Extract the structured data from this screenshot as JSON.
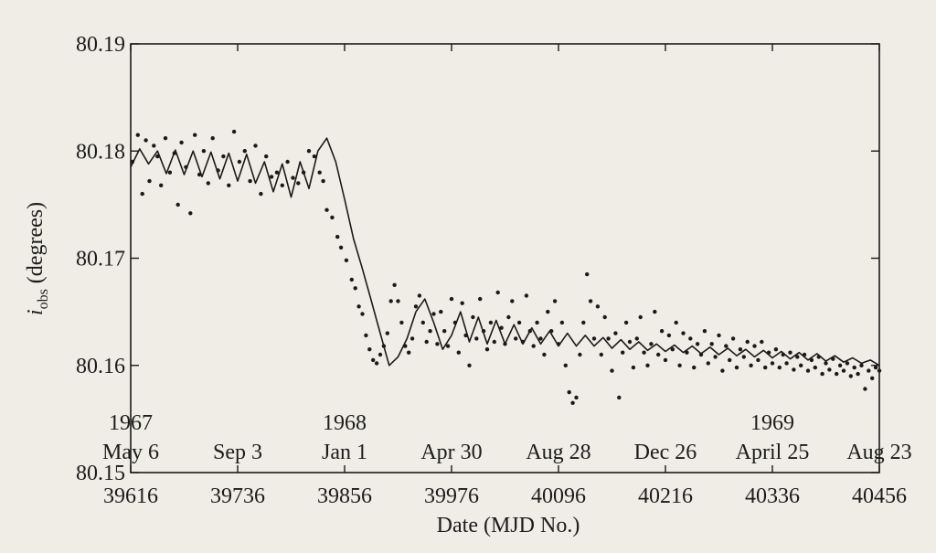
{
  "chart_data": {
    "type": "line",
    "xlabel": "Date (MJD No.)",
    "ylabel_main": "i",
    "ylabel_sub": "obs",
    "ylabel_rest": " (degrees)",
    "ylim": [
      80.15,
      80.19
    ],
    "xlim": [
      39616,
      40456
    ],
    "y_ticks": [
      {
        "value": 80.19,
        "label": "80.19"
      },
      {
        "value": 80.18,
        "label": "80.18"
      },
      {
        "value": 80.17,
        "label": "80.17"
      },
      {
        "value": 80.16,
        "label": "80.16"
      },
      {
        "value": 80.15,
        "label": "80.15"
      }
    ],
    "x_ticks_mjd": [
      {
        "value": 39616,
        "label": "39616"
      },
      {
        "value": 39736,
        "label": "39736"
      },
      {
        "value": 39856,
        "label": "39856"
      },
      {
        "value": 39976,
        "label": "39976"
      },
      {
        "value": 40096,
        "label": "40096"
      },
      {
        "value": 40216,
        "label": "40216"
      },
      {
        "value": 40336,
        "label": "40336"
      },
      {
        "value": 40456,
        "label": "40456"
      }
    ],
    "x_ticks_dates": [
      {
        "value": 39616,
        "label": "May 6"
      },
      {
        "value": 39736,
        "label": "Sep 3"
      },
      {
        "value": 39856,
        "label": "Jan 1"
      },
      {
        "value": 39976,
        "label": "Apr 30"
      },
      {
        "value": 40096,
        "label": "Aug 28"
      },
      {
        "value": 40216,
        "label": "Dec 26"
      },
      {
        "value": 40336,
        "label": "April 25"
      },
      {
        "value": 40456,
        "label": "Aug 23"
      }
    ],
    "year_labels": [
      {
        "value": 39616,
        "label": "1967"
      },
      {
        "value": 39856,
        "label": "1968"
      },
      {
        "value": 40336,
        "label": "1969"
      }
    ],
    "fit_curve": {
      "x": [
        39616,
        39626,
        39636,
        39646,
        39656,
        39666,
        39676,
        39686,
        39696,
        39706,
        39716,
        39726,
        39736,
        39746,
        39756,
        39766,
        39776,
        39786,
        39796,
        39806,
        39816,
        39826,
        39836,
        39846,
        39856,
        39866,
        39876,
        39886,
        39896,
        39906,
        39916,
        39926,
        39936,
        39946,
        39956,
        39966,
        39976,
        39986,
        39996,
        40006,
        40016,
        40026,
        40036,
        40046,
        40056,
        40066,
        40076,
        40086,
        40096,
        40106,
        40116,
        40126,
        40136,
        40146,
        40156,
        40166,
        40176,
        40186,
        40196,
        40206,
        40216,
        40226,
        40236,
        40246,
        40256,
        40266,
        40276,
        40286,
        40296,
        40306,
        40316,
        40326,
        40336,
        40346,
        40356,
        40366,
        40376,
        40386,
        40396,
        40406,
        40416,
        40426,
        40436,
        40446,
        40456
      ],
      "y": [
        80.1785,
        80.1802,
        80.1788,
        80.18,
        80.1779,
        80.1801,
        80.1778,
        80.18,
        80.1776,
        80.1799,
        80.1774,
        80.1798,
        80.1772,
        80.1797,
        80.177,
        80.179,
        80.1762,
        80.1788,
        80.1757,
        80.179,
        80.1765,
        80.18,
        80.1812,
        80.179,
        80.1755,
        80.1718,
        80.169,
        80.166,
        80.163,
        80.16,
        80.1608,
        80.1625,
        80.165,
        80.1662,
        80.164,
        80.1615,
        80.1628,
        80.165,
        80.1622,
        80.1645,
        80.162,
        80.1642,
        80.162,
        80.1638,
        80.162,
        80.1635,
        80.162,
        80.1632,
        80.1618,
        80.163,
        80.1618,
        80.1628,
        80.1618,
        80.1626,
        80.1616,
        80.1624,
        80.1615,
        80.1622,
        80.1614,
        80.162,
        80.1613,
        80.1619,
        80.1612,
        80.1618,
        80.1611,
        80.1617,
        80.161,
        80.1616,
        80.1609,
        80.1615,
        80.1608,
        80.1614,
        80.1607,
        80.1613,
        80.1606,
        80.1612,
        80.1605,
        80.1611,
        80.1604,
        80.1609,
        80.1603,
        80.1607,
        80.1602,
        80.1605,
        80.16
      ]
    },
    "observations": {
      "x": [
        39618,
        39624,
        39629,
        39633,
        39637,
        39642,
        39646,
        39650,
        39655,
        39660,
        39665,
        39669,
        39673,
        39678,
        39683,
        39688,
        39693,
        39698,
        39703,
        39708,
        39714,
        39720,
        39726,
        39732,
        39738,
        39744,
        39750,
        39756,
        39762,
        39768,
        39774,
        39780,
        39786,
        39792,
        39798,
        39804,
        39810,
        39816,
        39822,
        39828,
        39832,
        39836,
        39842,
        39848,
        39852,
        39858,
        39864,
        39868,
        39872,
        39876,
        39880,
        39884,
        39888,
        39892,
        39896,
        39900,
        39904,
        39908,
        39912,
        39916,
        39920,
        39924,
        39928,
        39932,
        39936,
        39940,
        39944,
        39948,
        39952,
        39956,
        39960,
        39964,
        39968,
        39972,
        39976,
        39980,
        39984,
        39988,
        39992,
        39996,
        40000,
        40004,
        40008,
        40012,
        40016,
        40020,
        40024,
        40028,
        40032,
        40036,
        40040,
        40044,
        40048,
        40052,
        40056,
        40060,
        40064,
        40068,
        40072,
        40076,
        40080,
        40084,
        40088,
        40092,
        40096,
        40100,
        40104,
        40108,
        40112,
        40116,
        40120,
        40124,
        40128,
        40132,
        40136,
        40140,
        40144,
        40148,
        40152,
        40156,
        40160,
        40164,
        40168,
        40172,
        40176,
        40180,
        40184,
        40188,
        40192,
        40196,
        40200,
        40204,
        40208,
        40212,
        40216,
        40220,
        40224,
        40228,
        40232,
        40236,
        40240,
        40244,
        40248,
        40252,
        40256,
        40260,
        40264,
        40268,
        40272,
        40276,
        40280,
        40284,
        40288,
        40292,
        40296,
        40300,
        40304,
        40308,
        40312,
        40316,
        40320,
        40324,
        40328,
        40332,
        40336,
        40340,
        40344,
        40348,
        40352,
        40356,
        40360,
        40364,
        40368,
        40372,
        40376,
        40380,
        40384,
        40388,
        40392,
        40396,
        40400,
        40404,
        40408,
        40412,
        40416,
        40420,
        40424,
        40428,
        40432,
        40436,
        40440,
        40444,
        40448,
        40452,
        40456
      ],
      "y": [
        80.179,
        80.1815,
        80.176,
        80.181,
        80.1772,
        80.1805,
        80.1795,
        80.1768,
        80.1812,
        80.178,
        80.1798,
        80.175,
        80.1808,
        80.1785,
        80.1742,
        80.1815,
        80.1778,
        80.18,
        80.177,
        80.1812,
        80.1782,
        80.1795,
        80.1768,
        80.1818,
        80.179,
        80.18,
        80.1772,
        80.1805,
        80.176,
        80.1795,
        80.1776,
        80.178,
        80.1768,
        80.179,
        80.1775,
        80.177,
        80.178,
        80.18,
        80.1795,
        80.178,
        80.1772,
        80.1745,
        80.1738,
        80.172,
        80.171,
        80.1698,
        80.168,
        80.1672,
        80.1655,
        80.1648,
        80.1628,
        80.1615,
        80.1605,
        80.1602,
        80.161,
        80.1618,
        80.163,
        80.166,
        80.1675,
        80.166,
        80.164,
        80.1618,
        80.1612,
        80.1625,
        80.1655,
        80.1665,
        80.164,
        80.1622,
        80.1632,
        80.1648,
        80.162,
        80.165,
        80.1632,
        80.1618,
        80.1662,
        80.164,
        80.1612,
        80.1658,
        80.1628,
        80.16,
        80.1645,
        80.1625,
        80.1662,
        80.1632,
        80.1615,
        80.164,
        80.1622,
        80.1668,
        80.1635,
        80.162,
        80.1645,
        80.166,
        80.1625,
        80.164,
        80.1622,
        80.1665,
        80.1632,
        80.1618,
        80.164,
        80.1625,
        80.161,
        80.165,
        80.1632,
        80.166,
        80.162,
        80.164,
        80.16,
        80.1575,
        80.1565,
        80.157,
        80.161,
        80.164,
        80.1685,
        80.166,
        80.1625,
        80.1655,
        80.161,
        80.1645,
        80.1625,
        80.1595,
        80.163,
        80.157,
        80.1612,
        80.164,
        80.1622,
        80.1598,
        80.1625,
        80.1645,
        80.1612,
        80.16,
        80.162,
        80.165,
        80.161,
        80.1632,
        80.1605,
        80.1628,
        80.1615,
        80.164,
        80.16,
        80.163,
        80.1612,
        80.1625,
        80.1598,
        80.162,
        80.161,
        80.1632,
        80.1602,
        80.162,
        80.1608,
        80.1628,
        80.1595,
        80.1618,
        80.1605,
        80.1625,
        80.1598,
        80.1615,
        80.1608,
        80.1622,
        80.16,
        80.1618,
        80.1605,
        80.1622,
        80.1598,
        80.1612,
        80.1602,
        80.1615,
        80.1598,
        80.161,
        80.1602,
        80.1612,
        80.1596,
        80.1608,
        80.16,
        80.161,
        80.1595,
        80.1605,
        80.1598,
        80.1608,
        80.1592,
        80.1602,
        80.1596,
        80.1606,
        80.1592,
        80.16,
        80.1595,
        80.1602,
        80.159,
        80.1598,
        80.1592,
        80.16,
        80.1578,
        80.1595,
        80.1588,
        80.1598,
        80.1595
      ]
    },
    "grid": false,
    "legend": "none"
  }
}
